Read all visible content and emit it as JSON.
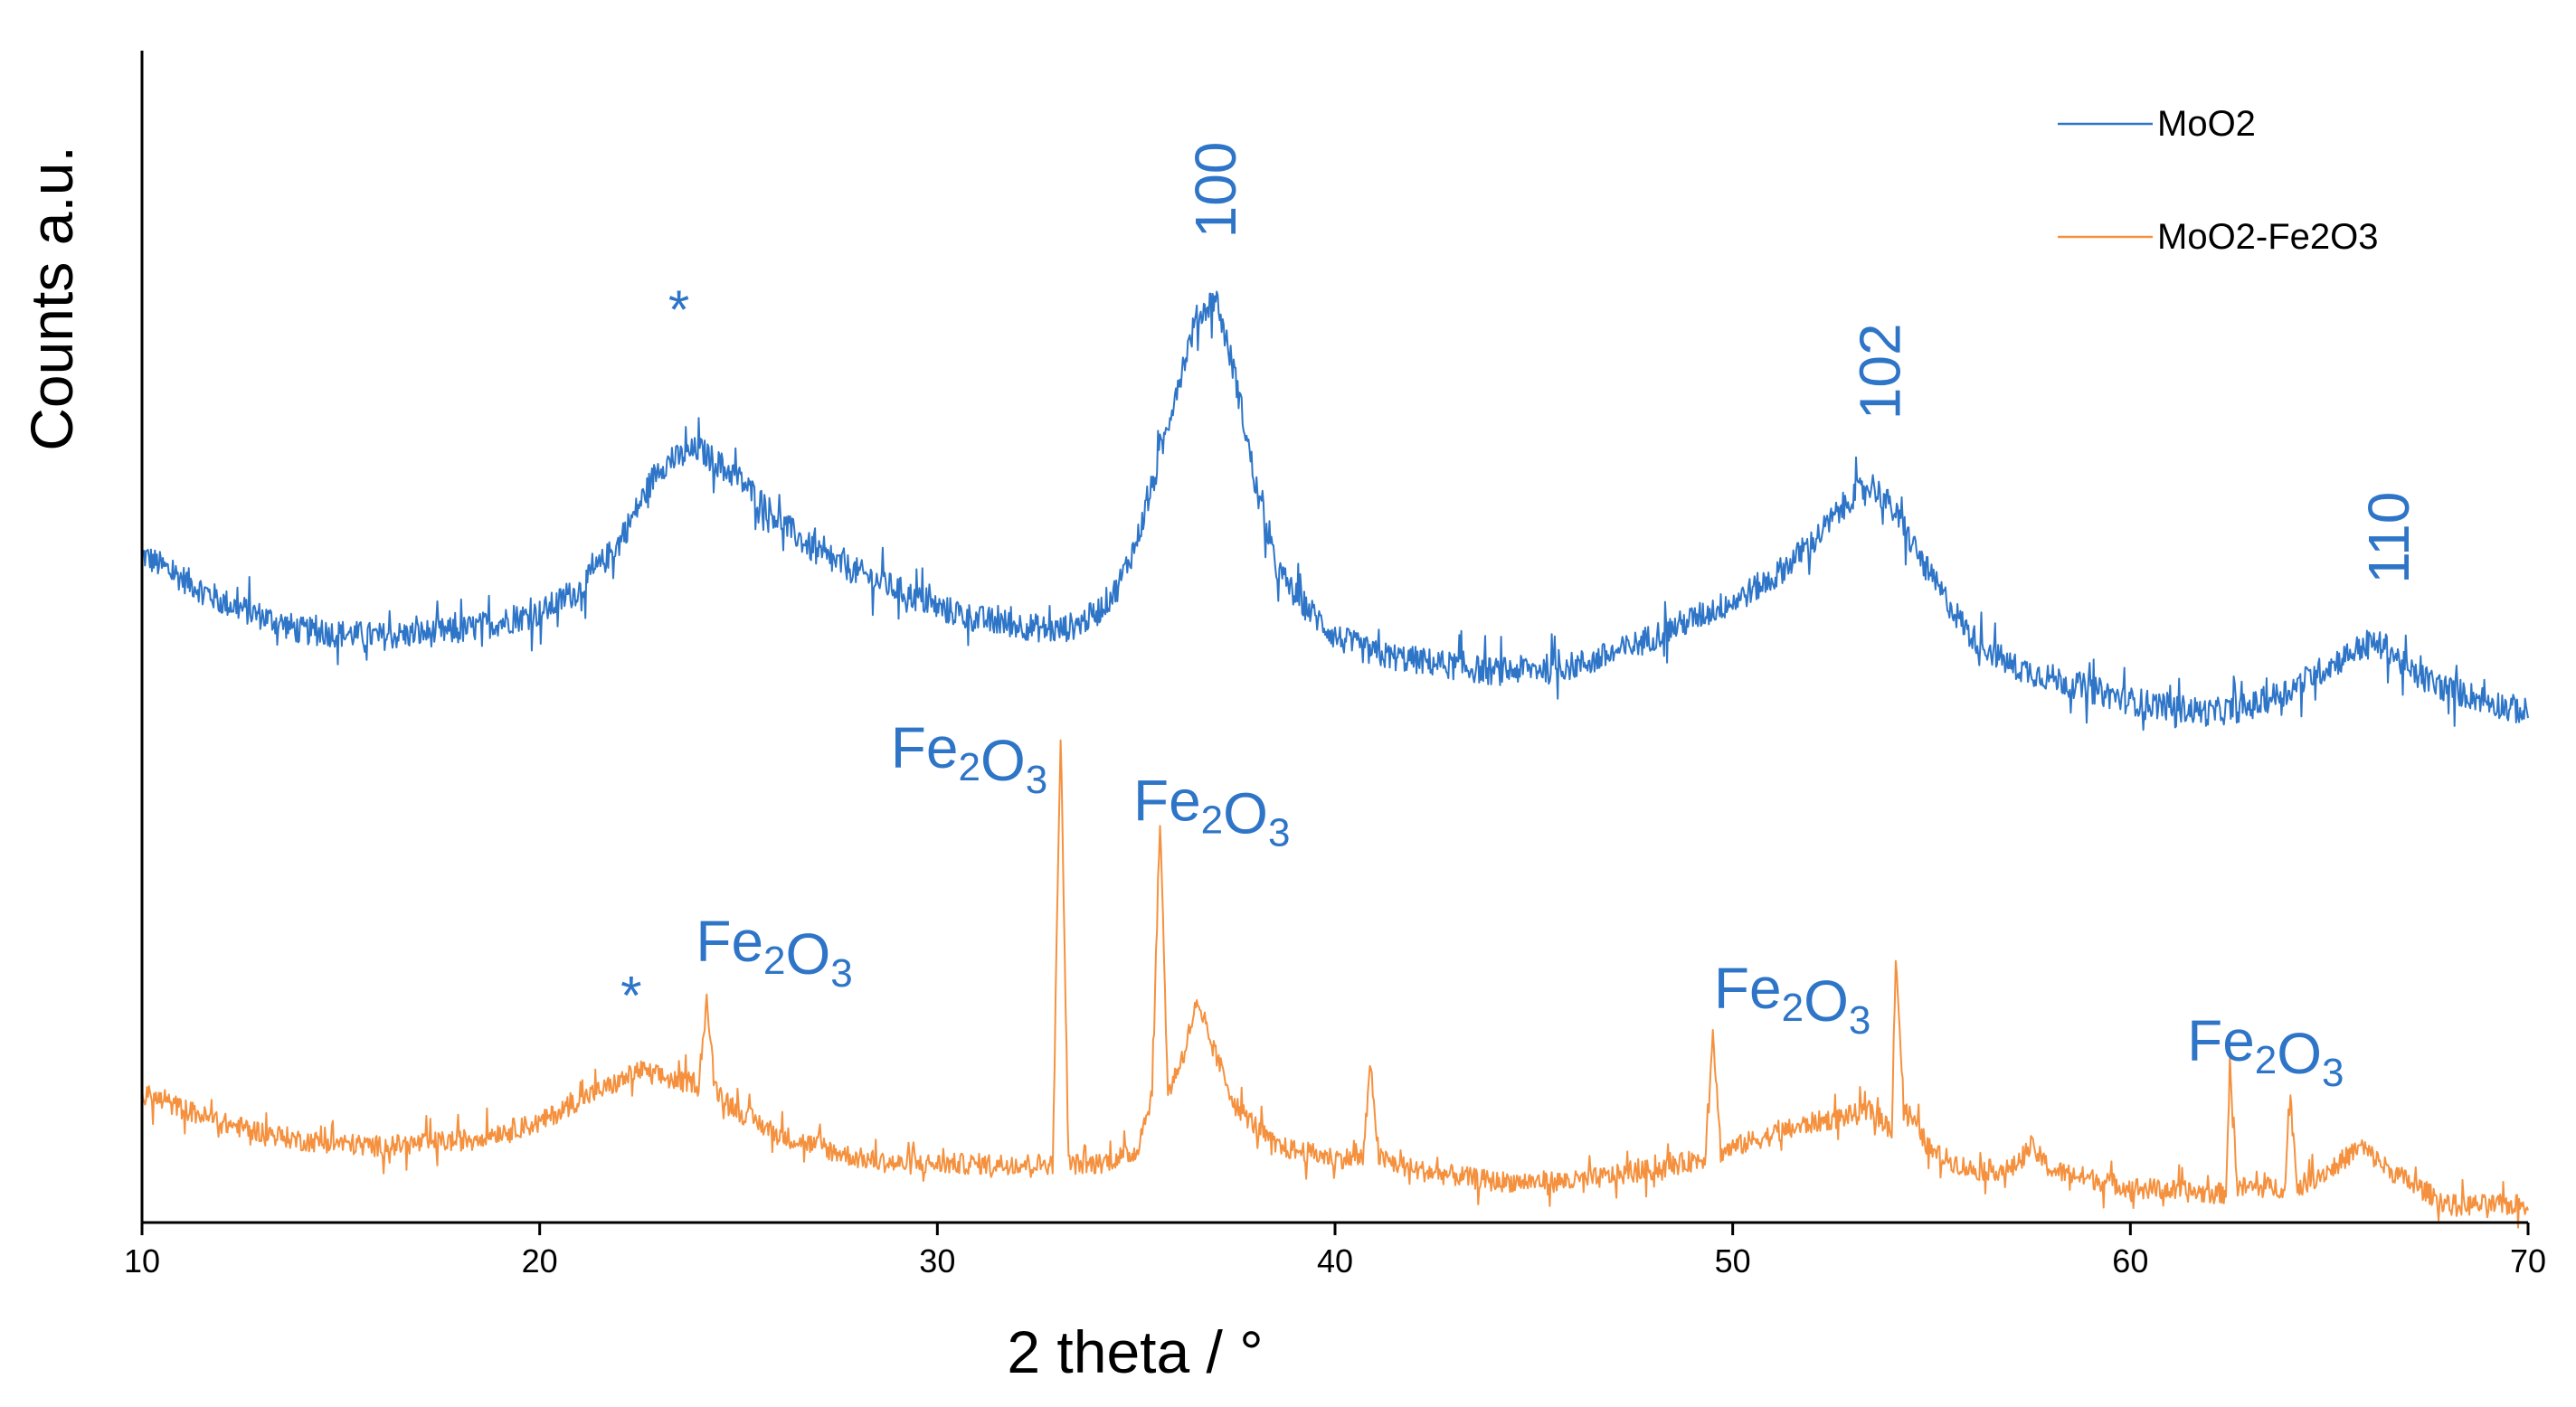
{
  "colors": {
    "moo2": "#2E75C8",
    "moo2_fe2o3": "#F5913E",
    "axis": "#000000",
    "annotation": "#2E75C8"
  },
  "chart_data": {
    "type": "line",
    "title": "",
    "xlabel": "2 theta / °",
    "ylabel": "Counts a.u.",
    "xlim": [
      10,
      70
    ],
    "ylim": [
      0,
      100
    ],
    "xticks": [
      "10",
      "20",
      "30",
      "40",
      "50",
      "60",
      "70"
    ],
    "yticks": [],
    "grid": false,
    "legend_position": "top-right",
    "series": [
      {
        "name": "MoO2",
        "x": [
          10,
          12,
          14,
          16,
          18,
          20,
          21,
          22,
          23,
          24,
          25,
          26,
          27,
          28,
          29,
          30,
          31,
          32,
          33,
          33.5,
          34,
          34.5,
          35,
          35.5,
          36,
          36.5,
          37,
          37.5,
          38,
          38.5,
          39,
          40,
          41,
          42,
          44,
          46,
          47,
          48,
          49,
          50,
          51,
          52,
          53,
          53.5,
          54,
          55,
          56,
          57,
          58,
          60,
          62,
          63,
          64,
          65,
          66,
          66.5,
          67,
          68,
          69,
          70
        ],
        "y": [
          57,
          53,
          50.5,
          50,
          50.5,
          52,
          54,
          58,
          64.5,
          66,
          63.5,
          60,
          57,
          55.5,
          54,
          52.5,
          51.5,
          51,
          50.5,
          51,
          52,
          54,
          58,
          64,
          71,
          77,
          79,
          72,
          63,
          56,
          53.5,
          50,
          48.5,
          48,
          47,
          47.5,
          48.5,
          50,
          51.5,
          53,
          55,
          58,
          62,
          63,
          61,
          55,
          50,
          47.5,
          46.5,
          44.5,
          43.5,
          44,
          45.5,
          47.5,
          49.5,
          49,
          47,
          45.5,
          44.5,
          43.5
        ],
        "noise": 1.2
      },
      {
        "name": "MoO2-Fe2O3",
        "x": [
          10,
          12,
          14,
          16,
          18,
          20,
          21,
          22,
          22.5,
          23,
          23.5,
          24,
          24.2,
          24.4,
          25,
          26,
          27,
          28,
          29,
          30,
          31,
          32,
          32.9,
          33.1,
          33.3,
          34,
          35,
          35.4,
          35.6,
          35.8,
          36.2,
          36.5,
          36.8,
          37.5,
          38.5,
          40,
          40.7,
          40.9,
          41.1,
          42,
          44,
          46,
          48,
          49.3,
          49.5,
          49.7,
          50.5,
          52,
          53.5,
          54,
          54.1,
          54.3,
          55,
          56,
          57,
          57.5,
          58,
          60,
          62,
          62.4,
          62.5,
          62.7,
          63.5,
          63.9,
          64,
          64.2,
          65,
          65.8,
          66.5,
          68,
          70
        ],
        "y": [
          11,
          8.5,
          7,
          6.5,
          7,
          8.5,
          10.5,
          12,
          13,
          12.5,
          12,
          12,
          19,
          11.5,
          9.5,
          7.5,
          6.5,
          5.5,
          5,
          5,
          5,
          5,
          5,
          42,
          5,
          5,
          6,
          11,
          34.5,
          11,
          14.5,
          18.5,
          16,
          10,
          6.5,
          5.5,
          5.5,
          13.5,
          5.5,
          4.5,
          3.5,
          3.5,
          4.5,
          5.5,
          16.5,
          6,
          7,
          8.5,
          9.5,
          8,
          23,
          10,
          6,
          4.5,
          4.5,
          6.5,
          4.5,
          3,
          2.5,
          2.5,
          13.5,
          3,
          3,
          3,
          11.5,
          3,
          4.5,
          6.5,
          4.5,
          1.5,
          1.5
        ],
        "noise": 0.9
      }
    ],
    "annotations": [
      {
        "text": "*",
        "x": 23.5,
        "y": 78,
        "series": "MoO2"
      },
      {
        "text": "100",
        "x": 37,
        "y": 84,
        "rotated": true,
        "series": "MoO2"
      },
      {
        "text": "102",
        "x": 53.7,
        "y": 68.5,
        "rotated": true,
        "series": "MoO2"
      },
      {
        "text": "110",
        "x": 66.5,
        "y": 54.5,
        "rotated": true,
        "series": "MoO2"
      },
      {
        "text": "Fe2O3",
        "x": 30.8,
        "y": 40.5,
        "series": "MoO2-Fe2O3"
      },
      {
        "text": "Fe2O3",
        "x": 36.9,
        "y": 36,
        "series": "MoO2-Fe2O3"
      },
      {
        "text": "*",
        "x": 22.3,
        "y": 19.5,
        "series": "MoO2-Fe2O3"
      },
      {
        "text": "Fe2O3",
        "x": 25.9,
        "y": 24,
        "series": "MoO2-Fe2O3"
      },
      {
        "text": "Fe2O3",
        "x": 51.5,
        "y": 20,
        "series": "MoO2-Fe2O3"
      },
      {
        "text": "Fe2O3",
        "x": 63.4,
        "y": 15.5,
        "series": "MoO2-Fe2O3"
      }
    ]
  }
}
